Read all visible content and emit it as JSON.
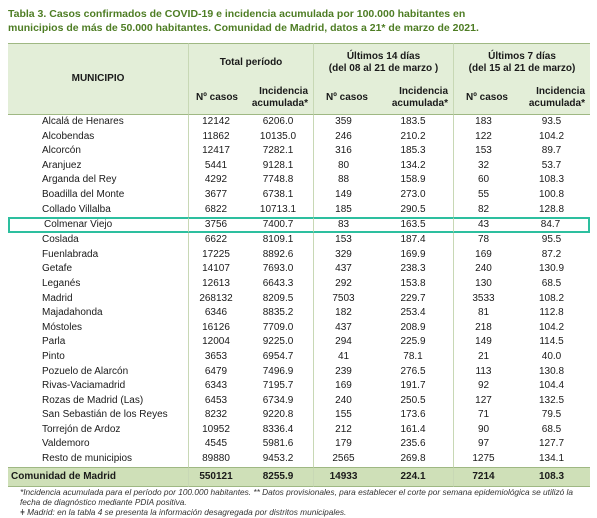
{
  "title": "Tabla 3. Casos confirmados de COVID-19 e incidencia acumulada por 100.000 habitantes en municipios de más de 50.000 habitantes. Comunidad de Madrid, datos a 21* de marzo de 2021.",
  "table": {
    "header": {
      "municipio": "MUNICIPIO",
      "total": "Total período",
      "last14": "Últimos 14 días",
      "last14_range": "(del 08 al 21 de marzo )",
      "last7": "Últimos 7 días",
      "last7_range": "(del 15 al 21 de marzo)",
      "columns": [
        "Nº casos",
        "Incidencia acumulada*",
        "Nº casos",
        "Incidencia acumulada*",
        "Nº casos",
        "Incidencia acumulada*"
      ]
    },
    "rows": [
      [
        "Alcalá de Henares",
        "12142",
        "6206.0",
        "359",
        "183.5",
        "183",
        "93.5"
      ],
      [
        "Alcobendas",
        "11862",
        "10135.0",
        "246",
        "210.2",
        "122",
        "104.2"
      ],
      [
        "Alcorcón",
        "12417",
        "7282.1",
        "316",
        "185.3",
        "153",
        "89.7"
      ],
      [
        "Aranjuez",
        "5441",
        "9128.1",
        "80",
        "134.2",
        "32",
        "53.7"
      ],
      [
        "Arganda del Rey",
        "4292",
        "7748.8",
        "88",
        "158.9",
        "60",
        "108.3"
      ],
      [
        "Boadilla del Monte",
        "3677",
        "6738.1",
        "149",
        "273.0",
        "55",
        "100.8"
      ],
      [
        "Collado Villalba",
        "6822",
        "10713.1",
        "185",
        "290.5",
        "82",
        "128.8"
      ],
      [
        "Colmenar Viejo",
        "3756",
        "7400.7",
        "83",
        "163.5",
        "43",
        "84.7"
      ],
      [
        "Coslada",
        "6622",
        "8109.1",
        "153",
        "187.4",
        "78",
        "95.5"
      ],
      [
        "Fuenlabrada",
        "17225",
        "8892.6",
        "329",
        "169.9",
        "169",
        "87.2"
      ],
      [
        "Getafe",
        "14107",
        "7693.0",
        "437",
        "238.3",
        "240",
        "130.9"
      ],
      [
        "Leganés",
        "12613",
        "6643.3",
        "292",
        "153.8",
        "130",
        "68.5"
      ],
      [
        "Madrid",
        "268132",
        "8209.5",
        "7503",
        "229.7",
        "3533",
        "108.2"
      ],
      [
        "Majadahonda",
        "6346",
        "8835.2",
        "182",
        "253.4",
        "81",
        "112.8"
      ],
      [
        "Móstoles",
        "16126",
        "7709.0",
        "437",
        "208.9",
        "218",
        "104.2"
      ],
      [
        "Parla",
        "12004",
        "9225.0",
        "294",
        "225.9",
        "149",
        "114.5"
      ],
      [
        "Pinto",
        "3653",
        "6954.7",
        "41",
        "78.1",
        "21",
        "40.0"
      ],
      [
        "Pozuelo de Alarcón",
        "6479",
        "7496.9",
        "239",
        "276.5",
        "113",
        "130.8"
      ],
      [
        "Rivas-Vaciamadrid",
        "6343",
        "7195.7",
        "169",
        "191.7",
        "92",
        "104.4"
      ],
      [
        "Rozas de Madrid (Las)",
        "6453",
        "6734.9",
        "240",
        "250.5",
        "127",
        "132.5"
      ],
      [
        "San Sebastián de los Reyes",
        "8232",
        "9220.8",
        "155",
        "173.6",
        "71",
        "79.5"
      ],
      [
        "Torrejón de Ardoz",
        "10952",
        "8336.4",
        "212",
        "161.4",
        "90",
        "68.5"
      ],
      [
        "Valdemoro",
        "4545",
        "5981.6",
        "179",
        "235.6",
        "97",
        "127.7"
      ],
      [
        "Resto de municipios",
        "89880",
        "9453.2",
        "2565",
        "269.8",
        "1275",
        "134.1"
      ]
    ],
    "total": [
      "Comunidad de Madrid",
      "550121",
      "8255.9",
      "14933",
      "224.1",
      "7214",
      "108.3"
    ]
  },
  "footnotes": [
    "*Incidencia acumulada para el período por 100.000 habitantes. ** Datos provisionales, para establecer el corte por semana epidemiológica se utilizó la fecha de diagnóstico mediante PDIA positiva.",
    "ǂ Madrid: en la tabla 4 se presenta la información desagregada por distritos municipales."
  ]
}
